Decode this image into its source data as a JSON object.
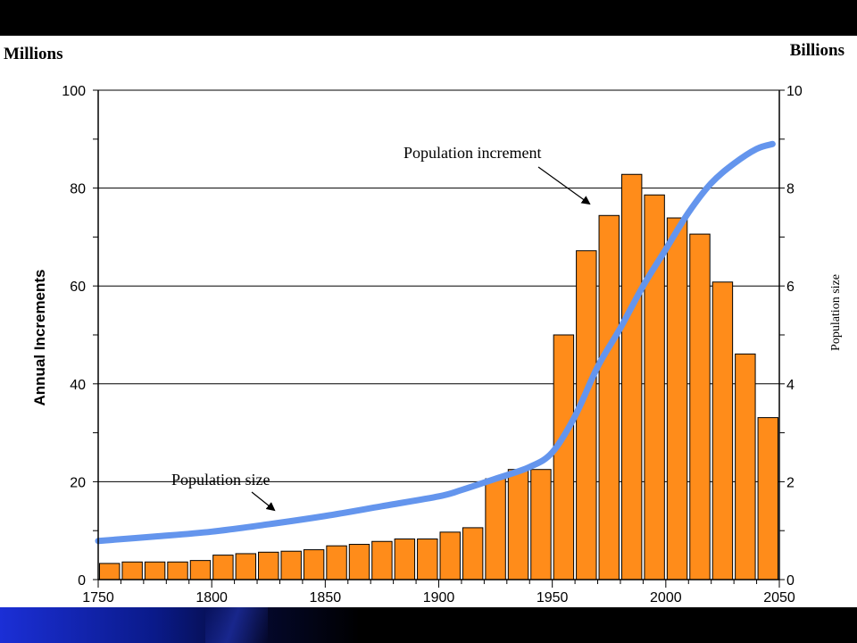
{
  "chart_data": {
    "type": "bar",
    "left_axis_unit": "Millions",
    "right_axis_unit": "Billions",
    "ylabel": "Annual Increments",
    "y2label": "Population size",
    "ylim": [
      0,
      100
    ],
    "y2lim": [
      0,
      10
    ],
    "yticks": [
      "0",
      "20",
      "40",
      "60",
      "80",
      "100"
    ],
    "y2ticks": [
      "0",
      "2",
      "4",
      "6",
      "8",
      "10"
    ],
    "xlim": [
      1750,
      2050
    ],
    "xticks": [
      "1750",
      "1800",
      "1850",
      "1900",
      "1950",
      "2000",
      "2050"
    ],
    "grid": true,
    "bar_color": "#ff8c1a",
    "line_color": "#6495ed",
    "series": [
      {
        "name": "Population increment",
        "type": "bar",
        "x": [
          1750,
          1760,
          1770,
          1780,
          1790,
          1800,
          1810,
          1820,
          1830,
          1840,
          1850,
          1860,
          1870,
          1880,
          1890,
          1900,
          1910,
          1920,
          1930,
          1940,
          1950,
          1960,
          1970,
          1980,
          1990,
          2000,
          2010,
          2020,
          2030,
          2040
        ],
        "values": [
          3.3,
          3.6,
          3.6,
          3.6,
          3.9,
          5.0,
          5.3,
          5.6,
          5.8,
          6.1,
          6.9,
          7.2,
          7.8,
          8.3,
          8.3,
          9.7,
          10.6,
          20.6,
          22.5,
          22.5,
          50.0,
          67.2,
          74.4,
          82.8,
          78.6,
          73.9,
          70.6,
          60.8,
          46.1,
          33.1
        ]
      },
      {
        "name": "Population size",
        "type": "line",
        "x": [
          1750,
          1775,
          1800,
          1825,
          1850,
          1875,
          1900,
          1910,
          1925,
          1940,
          1950,
          1960,
          1970,
          1980,
          1990,
          2000,
          2010,
          2020,
          2030,
          2040,
          2047
        ],
        "values": [
          0.79,
          0.88,
          0.98,
          1.13,
          1.3,
          1.5,
          1.7,
          1.83,
          2.06,
          2.3,
          2.6,
          3.34,
          4.35,
          5.14,
          6.0,
          6.75,
          7.5,
          8.1,
          8.5,
          8.8,
          8.9
        ]
      }
    ],
    "annotations": [
      "Population increment",
      "Population size"
    ]
  }
}
